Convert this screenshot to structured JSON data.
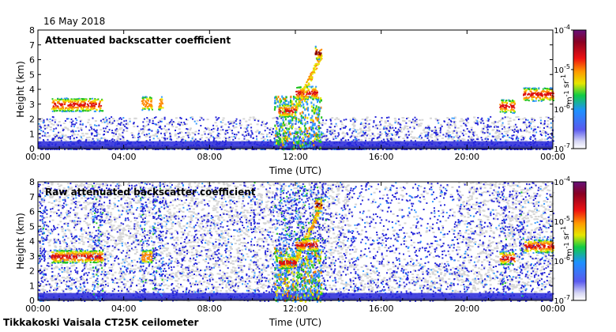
{
  "date": "16 May 2018",
  "footer": "Tikkakoski Vaisala CT25K ceilometer",
  "colors": {
    "low": "#2626d9",
    "mid_blue": "#3399ff",
    "green": "#22c322",
    "yellow": "#e8e800",
    "orange": "#ff8800",
    "red": "#dd1111",
    "dark_red": "#880000",
    "noise_gray": "#d6d6d6"
  },
  "chart_data": [
    {
      "type": "heatmap",
      "title": "Attenuated backscatter coefficient",
      "xlabel": "Time (UTC)",
      "ylabel": "Height (km)",
      "x_ticks": [
        "00:00",
        "04:00",
        "08:00",
        "12:00",
        "16:00",
        "20:00",
        "00:00"
      ],
      "xlim_hours": [
        0,
        24
      ],
      "y_ticks": [
        "0",
        "1",
        "2",
        "3",
        "4",
        "5",
        "6",
        "7",
        "8"
      ],
      "ylim": [
        0,
        8
      ],
      "colorbar": {
        "label": "m-1 sr-1",
        "ticks": [
          "10-7",
          "10-6",
          "10-5",
          "10-4"
        ],
        "range": [
          1e-07,
          0.0001
        ],
        "scale": "log"
      },
      "cloud_layers": [
        {
          "start_h": 0.6,
          "end_h": 3.0,
          "height_km": 3.0,
          "level": "red"
        },
        {
          "start_h": 4.8,
          "end_h": 5.3,
          "height_km": 3.1,
          "level": "orange"
        },
        {
          "start_h": 5.6,
          "end_h": 5.8,
          "height_km": 3.1,
          "level": "orange"
        },
        {
          "start_h": 11.2,
          "end_h": 12.0,
          "height_km": 2.6,
          "level": "red"
        },
        {
          "start_h": 12.0,
          "end_h": 13.0,
          "height_km": 3.8,
          "level": "red"
        },
        {
          "start_h": 12.9,
          "end_h": 13.2,
          "height_km": 6.5,
          "level": "dark_red"
        },
        {
          "start_h": 21.5,
          "end_h": 22.2,
          "height_km": 2.9,
          "level": "red"
        },
        {
          "start_h": 22.6,
          "end_h": 24.0,
          "height_km": 3.7,
          "level": "red"
        }
      ]
    },
    {
      "type": "heatmap",
      "title": "Raw attenuated backscatter coefficient",
      "xlabel": "Time (UTC)",
      "ylabel": "Height (km)",
      "x_ticks": [
        "00:00",
        "04:00",
        "08:00",
        "12:00",
        "16:00",
        "20:00",
        "00:00"
      ],
      "xlim_hours": [
        0,
        24
      ],
      "y_ticks": [
        "0",
        "1",
        "2",
        "3",
        "4",
        "5",
        "6",
        "7",
        "8"
      ],
      "ylim": [
        0,
        8
      ],
      "colorbar": {
        "label": "m-1 sr-1",
        "ticks": [
          "10-7",
          "10-6",
          "10-5",
          "10-4"
        ],
        "range": [
          1e-07,
          0.0001
        ],
        "scale": "log"
      },
      "cloud_layers": [
        {
          "start_h": 0.6,
          "end_h": 3.0,
          "height_km": 3.0,
          "level": "red"
        },
        {
          "start_h": 4.8,
          "end_h": 5.3,
          "height_km": 3.0,
          "level": "orange"
        },
        {
          "start_h": 11.2,
          "end_h": 12.0,
          "height_km": 2.6,
          "level": "red"
        },
        {
          "start_h": 12.0,
          "end_h": 13.0,
          "height_km": 3.8,
          "level": "red"
        },
        {
          "start_h": 12.9,
          "end_h": 13.2,
          "height_km": 6.5,
          "level": "dark_red"
        },
        {
          "start_h": 21.5,
          "end_h": 22.2,
          "height_km": 2.9,
          "level": "red"
        },
        {
          "start_h": 22.6,
          "end_h": 24.0,
          "height_km": 3.7,
          "level": "red"
        }
      ]
    }
  ]
}
